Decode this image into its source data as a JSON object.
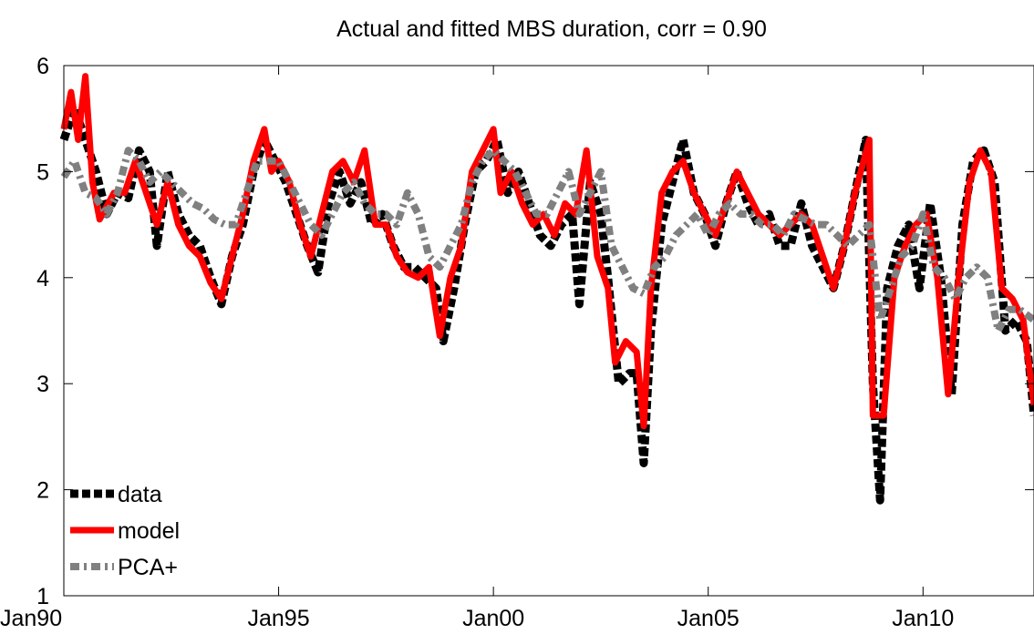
{
  "chart_data": {
    "type": "line",
    "title": "Actual and fitted MBS duration, corr = 0.90",
    "xlabel": "",
    "ylabel": "",
    "xlim": [
      "1990-01",
      "2012-08"
    ],
    "ylim": [
      1,
      6
    ],
    "x_ticks": [
      "1990-01",
      "1995-01",
      "2000-01",
      "2005-01",
      "2010-01"
    ],
    "x_tick_labels": [
      "Jan90",
      "Jan95",
      "Jan00",
      "Jan05",
      "Jan10"
    ],
    "y_ticks": [
      1,
      2,
      3,
      4,
      5,
      6
    ],
    "y_tick_labels": [
      "1",
      "2",
      "3",
      "4",
      "5",
      "6"
    ],
    "grid": false,
    "legend": {
      "placement": "bottom-left"
    },
    "series": [
      {
        "name": "data",
        "color": "#000000",
        "style": "dotted",
        "points": [
          [
            "1990-01",
            5.3
          ],
          [
            "1990-04",
            5.6
          ],
          [
            "1990-07",
            5.3
          ],
          [
            "1990-10",
            5.0
          ],
          [
            "1991-01",
            4.6
          ],
          [
            "1991-04",
            4.8
          ],
          [
            "1991-07",
            4.75
          ],
          [
            "1991-10",
            5.2
          ],
          [
            "1992-01",
            5.0
          ],
          [
            "1992-03",
            4.3
          ],
          [
            "1992-06",
            5.0
          ],
          [
            "1992-09",
            4.6
          ],
          [
            "1992-12",
            4.4
          ],
          [
            "1993-03",
            4.3
          ],
          [
            "1993-06",
            4.0
          ],
          [
            "1993-09",
            3.75
          ],
          [
            "1993-12",
            4.2
          ],
          [
            "1994-03",
            4.5
          ],
          [
            "1994-06",
            5.0
          ],
          [
            "1994-09",
            5.3
          ],
          [
            "1994-12",
            5.1
          ],
          [
            "1995-03",
            4.9
          ],
          [
            "1995-06",
            4.6
          ],
          [
            "1995-09",
            4.3
          ],
          [
            "1995-12",
            4.05
          ],
          [
            "1996-03",
            4.7
          ],
          [
            "1996-06",
            5.0
          ],
          [
            "1996-09",
            4.7
          ],
          [
            "1996-12",
            4.9
          ],
          [
            "1997-03",
            4.5
          ],
          [
            "1997-06",
            4.6
          ],
          [
            "1997-09",
            4.3
          ],
          [
            "1997-12",
            4.1
          ],
          [
            "1998-03",
            4.1
          ],
          [
            "1998-06",
            4.0
          ],
          [
            "1998-09",
            3.9
          ],
          [
            "1998-11",
            3.4
          ],
          [
            "1999-02",
            3.9
          ],
          [
            "1999-05",
            4.5
          ],
          [
            "1999-08",
            5.0
          ],
          [
            "1999-11",
            5.1
          ],
          [
            "2000-02",
            5.3
          ],
          [
            "2000-05",
            4.8
          ],
          [
            "2000-08",
            5.0
          ],
          [
            "2000-11",
            4.7
          ],
          [
            "2001-02",
            4.4
          ],
          [
            "2001-05",
            4.3
          ],
          [
            "2001-08",
            4.5
          ],
          [
            "2001-11",
            4.6
          ],
          [
            "2002-01",
            3.75
          ],
          [
            "2002-04",
            4.9
          ],
          [
            "2002-07",
            4.6
          ],
          [
            "2002-09",
            4.0
          ],
          [
            "2002-12",
            3.0
          ],
          [
            "2003-03",
            3.1
          ],
          [
            "2003-05",
            3.1
          ],
          [
            "2003-07",
            2.25
          ],
          [
            "2003-09",
            3.5
          ],
          [
            "2003-12",
            4.5
          ],
          [
            "2004-03",
            4.9
          ],
          [
            "2004-06",
            5.3
          ],
          [
            "2004-09",
            4.8
          ],
          [
            "2004-12",
            4.6
          ],
          [
            "2005-03",
            4.3
          ],
          [
            "2005-06",
            4.7
          ],
          [
            "2005-09",
            5.0
          ],
          [
            "2005-12",
            4.7
          ],
          [
            "2006-03",
            4.5
          ],
          [
            "2006-06",
            4.6
          ],
          [
            "2006-09",
            4.3
          ],
          [
            "2006-12",
            4.3
          ],
          [
            "2007-03",
            4.7
          ],
          [
            "2007-06",
            4.3
          ],
          [
            "2007-09",
            4.1
          ],
          [
            "2007-12",
            3.9
          ],
          [
            "2008-03",
            4.3
          ],
          [
            "2008-06",
            4.8
          ],
          [
            "2008-09",
            5.3
          ],
          [
            "2008-11",
            3.0
          ],
          [
            "2009-01",
            1.9
          ],
          [
            "2009-03",
            3.9
          ],
          [
            "2009-06",
            4.3
          ],
          [
            "2009-09",
            4.5
          ],
          [
            "2009-12",
            3.9
          ],
          [
            "2010-03",
            4.7
          ],
          [
            "2010-06",
            4.0
          ],
          [
            "2010-09",
            2.9
          ],
          [
            "2010-12",
            4.5
          ],
          [
            "2011-03",
            5.1
          ],
          [
            "2011-06",
            5.2
          ],
          [
            "2011-09",
            4.9
          ],
          [
            "2011-12",
            3.5
          ],
          [
            "2012-03",
            3.6
          ],
          [
            "2012-06",
            3.4
          ],
          [
            "2012-08",
            2.7
          ]
        ]
      },
      {
        "name": "model",
        "color": "#ff0000",
        "style": "solid",
        "points": [
          [
            "1990-01",
            5.4
          ],
          [
            "1990-03",
            5.75
          ],
          [
            "1990-05",
            5.3
          ],
          [
            "1990-07",
            5.9
          ],
          [
            "1990-09",
            4.9
          ],
          [
            "1990-11",
            4.55
          ],
          [
            "1991-03",
            4.8
          ],
          [
            "1991-06",
            4.8
          ],
          [
            "1991-09",
            5.1
          ],
          [
            "1991-12",
            4.8
          ],
          [
            "1992-03",
            4.5
          ],
          [
            "1992-06",
            4.9
          ],
          [
            "1992-09",
            4.5
          ],
          [
            "1992-12",
            4.3
          ],
          [
            "1993-03",
            4.2
          ],
          [
            "1993-06",
            3.95
          ],
          [
            "1993-09",
            3.8
          ],
          [
            "1993-12",
            4.2
          ],
          [
            "1994-03",
            4.6
          ],
          [
            "1994-06",
            5.1
          ],
          [
            "1994-09",
            5.4
          ],
          [
            "1994-11",
            5.0
          ],
          [
            "1995-01",
            5.1
          ],
          [
            "1995-04",
            4.9
          ],
          [
            "1995-07",
            4.5
          ],
          [
            "1995-10",
            4.2
          ],
          [
            "1996-01",
            4.6
          ],
          [
            "1996-04",
            5.0
          ],
          [
            "1996-07",
            5.1
          ],
          [
            "1996-10",
            4.9
          ],
          [
            "1997-01",
            5.2
          ],
          [
            "1997-04",
            4.5
          ],
          [
            "1997-07",
            4.5
          ],
          [
            "1997-10",
            4.2
          ],
          [
            "1998-01",
            4.05
          ],
          [
            "1998-04",
            4.0
          ],
          [
            "1998-07",
            4.1
          ],
          [
            "1998-10",
            3.45
          ],
          [
            "1999-01",
            4.0
          ],
          [
            "1999-04",
            4.3
          ],
          [
            "1999-07",
            5.0
          ],
          [
            "1999-10",
            5.2
          ],
          [
            "2000-01",
            5.4
          ],
          [
            "2000-03",
            4.8
          ],
          [
            "2000-06",
            5.0
          ],
          [
            "2000-09",
            4.7
          ],
          [
            "2000-12",
            4.5
          ],
          [
            "2001-03",
            4.6
          ],
          [
            "2001-06",
            4.4
          ],
          [
            "2001-09",
            4.7
          ],
          [
            "2001-12",
            4.6
          ],
          [
            "2002-03",
            5.2
          ],
          [
            "2002-06",
            4.2
          ],
          [
            "2002-09",
            3.9
          ],
          [
            "2002-11",
            3.2
          ],
          [
            "2003-02",
            3.4
          ],
          [
            "2003-05",
            3.3
          ],
          [
            "2003-07",
            2.6
          ],
          [
            "2003-09",
            3.9
          ],
          [
            "2003-12",
            4.8
          ],
          [
            "2004-03",
            5.0
          ],
          [
            "2004-06",
            5.1
          ],
          [
            "2004-09",
            4.8
          ],
          [
            "2004-12",
            4.6
          ],
          [
            "2005-03",
            4.4
          ],
          [
            "2005-06",
            4.7
          ],
          [
            "2005-09",
            5.0
          ],
          [
            "2005-12",
            4.8
          ],
          [
            "2006-03",
            4.6
          ],
          [
            "2006-06",
            4.5
          ],
          [
            "2006-09",
            4.4
          ],
          [
            "2006-12",
            4.5
          ],
          [
            "2007-03",
            4.6
          ],
          [
            "2007-06",
            4.5
          ],
          [
            "2007-09",
            4.2
          ],
          [
            "2007-12",
            3.9
          ],
          [
            "2008-03",
            4.3
          ],
          [
            "2008-06",
            4.8
          ],
          [
            "2008-10",
            5.3
          ],
          [
            "2008-11",
            2.7
          ],
          [
            "2009-02",
            2.7
          ],
          [
            "2009-05",
            4.0
          ],
          [
            "2009-08",
            4.3
          ],
          [
            "2009-11",
            4.5
          ],
          [
            "2010-02",
            4.6
          ],
          [
            "2010-05",
            4.0
          ],
          [
            "2010-08",
            2.9
          ],
          [
            "2010-11",
            4.0
          ],
          [
            "2011-02",
            4.9
          ],
          [
            "2011-05",
            5.2
          ],
          [
            "2011-08",
            5.0
          ],
          [
            "2011-11",
            3.9
          ],
          [
            "2012-02",
            3.8
          ],
          [
            "2012-05",
            3.6
          ],
          [
            "2012-08",
            2.8
          ]
        ]
      },
      {
        "name": "PCA+",
        "color": "#808080",
        "style": "dash-dot",
        "points": [
          [
            "1990-01",
            4.95
          ],
          [
            "1990-04",
            5.1
          ],
          [
            "1990-07",
            4.8
          ],
          [
            "1990-10",
            4.75
          ],
          [
            "1991-01",
            4.6
          ],
          [
            "1991-04",
            4.8
          ],
          [
            "1991-07",
            5.2
          ],
          [
            "1991-10",
            5.1
          ],
          [
            "1992-01",
            4.9
          ],
          [
            "1992-04",
            5.0
          ],
          [
            "1992-07",
            4.9
          ],
          [
            "1992-10",
            4.8
          ],
          [
            "1993-01",
            4.7
          ],
          [
            "1993-04",
            4.65
          ],
          [
            "1993-07",
            4.55
          ],
          [
            "1993-10",
            4.5
          ],
          [
            "1994-01",
            4.5
          ],
          [
            "1994-04",
            4.8
          ],
          [
            "1994-07",
            5.1
          ],
          [
            "1994-10",
            5.1
          ],
          [
            "1995-01",
            5.1
          ],
          [
            "1995-04",
            4.9
          ],
          [
            "1995-07",
            4.7
          ],
          [
            "1995-10",
            4.5
          ],
          [
            "1996-01",
            4.4
          ],
          [
            "1996-04",
            4.6
          ],
          [
            "1996-07",
            4.8
          ],
          [
            "1996-10",
            4.9
          ],
          [
            "1997-01",
            4.7
          ],
          [
            "1997-04",
            4.6
          ],
          [
            "1997-07",
            4.6
          ],
          [
            "1997-10",
            4.5
          ],
          [
            "1998-01",
            4.8
          ],
          [
            "1998-04",
            4.6
          ],
          [
            "1998-07",
            4.2
          ],
          [
            "1998-10",
            4.1
          ],
          [
            "1999-01",
            4.3
          ],
          [
            "1999-04",
            4.5
          ],
          [
            "1999-07",
            4.9
          ],
          [
            "1999-10",
            5.1
          ],
          [
            "2000-01",
            5.2
          ],
          [
            "2000-04",
            5.1
          ],
          [
            "2000-07",
            5.0
          ],
          [
            "2000-10",
            4.8
          ],
          [
            "2001-01",
            4.6
          ],
          [
            "2001-04",
            4.6
          ],
          [
            "2001-07",
            4.8
          ],
          [
            "2001-10",
            5.0
          ],
          [
            "2002-01",
            4.6
          ],
          [
            "2002-04",
            4.8
          ],
          [
            "2002-07",
            5.0
          ],
          [
            "2002-10",
            4.3
          ],
          [
            "2003-01",
            4.1
          ],
          [
            "2003-04",
            3.9
          ],
          [
            "2003-07",
            3.85
          ],
          [
            "2003-10",
            4.1
          ],
          [
            "2004-01",
            4.2
          ],
          [
            "2004-04",
            4.4
          ],
          [
            "2004-07",
            4.5
          ],
          [
            "2004-10",
            4.6
          ],
          [
            "2005-01",
            4.4
          ],
          [
            "2005-04",
            4.6
          ],
          [
            "2005-07",
            4.7
          ],
          [
            "2005-10",
            4.6
          ],
          [
            "2006-01",
            4.6
          ],
          [
            "2006-04",
            4.5
          ],
          [
            "2006-07",
            4.5
          ],
          [
            "2006-10",
            4.4
          ],
          [
            "2007-01",
            4.6
          ],
          [
            "2007-04",
            4.55
          ],
          [
            "2007-07",
            4.5
          ],
          [
            "2007-10",
            4.5
          ],
          [
            "2008-01",
            4.4
          ],
          [
            "2008-04",
            4.3
          ],
          [
            "2008-07",
            4.4
          ],
          [
            "2008-10",
            4.5
          ],
          [
            "2009-01",
            3.6
          ],
          [
            "2009-04",
            3.9
          ],
          [
            "2009-07",
            4.2
          ],
          [
            "2009-10",
            4.3
          ],
          [
            "2010-01",
            4.6
          ],
          [
            "2010-04",
            4.1
          ],
          [
            "2010-07",
            4.0
          ],
          [
            "2010-10",
            3.8
          ],
          [
            "2011-01",
            4.0
          ],
          [
            "2011-04",
            4.1
          ],
          [
            "2011-07",
            4.0
          ],
          [
            "2011-10",
            3.5
          ],
          [
            "2012-01",
            3.7
          ],
          [
            "2012-04",
            3.7
          ],
          [
            "2012-08",
            3.6
          ]
        ]
      }
    ]
  }
}
